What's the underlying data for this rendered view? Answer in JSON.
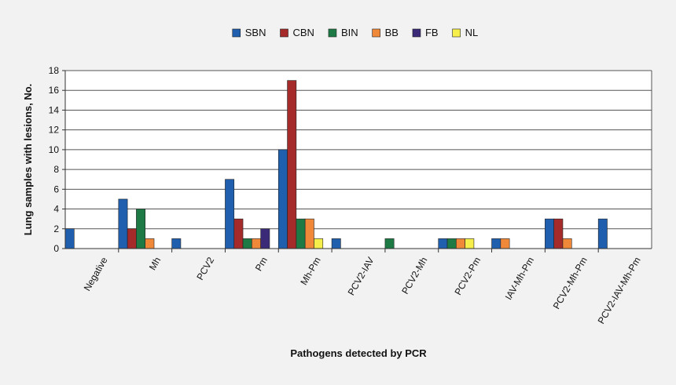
{
  "chart_data": {
    "type": "bar",
    "title": "",
    "xlabel": "Pathogens detected by PCR",
    "ylabel": "Lung samples with lesions, No.",
    "ylim": [
      0,
      18
    ],
    "yticks": [
      0,
      2,
      4,
      6,
      8,
      10,
      12,
      14,
      16,
      18
    ],
    "grid": true,
    "legend_position": "top-center",
    "categories": [
      "Negative",
      "Mh",
      "PCV2",
      "Pm",
      "Mh-Pm",
      "PCV2-IAV",
      "PCV2-Mh",
      "PCV2-Pm",
      "IAV-Mh-Pm",
      "PCV2-Mh-Pm",
      "PCV2-IAV-Mh-Pm"
    ],
    "series": [
      {
        "name": "SBN",
        "color": "#1f5fae",
        "values": [
          2,
          5,
          1,
          7,
          10,
          1,
          0,
          1,
          1,
          3,
          3
        ]
      },
      {
        "name": "CBN",
        "color": "#a52a2a",
        "values": [
          0,
          2,
          0,
          3,
          17,
          0,
          0,
          0,
          0,
          3,
          0
        ]
      },
      {
        "name": "BIN",
        "color": "#1e7a45",
        "values": [
          0,
          4,
          0,
          1,
          3,
          0,
          1,
          1,
          0,
          0,
          0
        ]
      },
      {
        "name": "BB",
        "color": "#f0883a",
        "values": [
          0,
          1,
          0,
          1,
          3,
          0,
          0,
          1,
          1,
          1,
          0
        ]
      },
      {
        "name": "FB",
        "color": "#3a2a78",
        "values": [
          0,
          0,
          0,
          2,
          0,
          0,
          0,
          0,
          0,
          0,
          0
        ]
      },
      {
        "name": "NL",
        "color": "#f6ee4a",
        "values": [
          0,
          0,
          0,
          0,
          1,
          0,
          0,
          1,
          0,
          0,
          0
        ]
      }
    ]
  }
}
